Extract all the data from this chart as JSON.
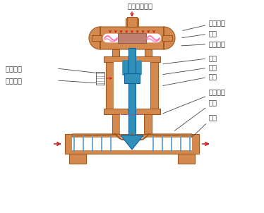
{
  "bg_color": "#ffffff",
  "orange": "#D4894E",
  "orange_dark": "#A05A20",
  "blue": "#3090B8",
  "blue_mid": "#5AAFD0",
  "pink": "#FF70B0",
  "purple_fill": "#C8A0D8",
  "red": "#CC2020",
  "dark": "#333333",
  "labels": {
    "pressure_in": "压力信号入口",
    "upper_chamber": "膜室上腔",
    "diaphragm": "膜片",
    "lower_chamber": "膜室下腔",
    "stroke_pointer": "行程指针",
    "stroke_scale": "行程刻度",
    "spring": "弹簧",
    "push_rod": "推杆",
    "valve_stem": "阀杆",
    "seal_packing": "密封填料",
    "valve_core": "阀芟",
    "valve_seat": "阀座"
  }
}
